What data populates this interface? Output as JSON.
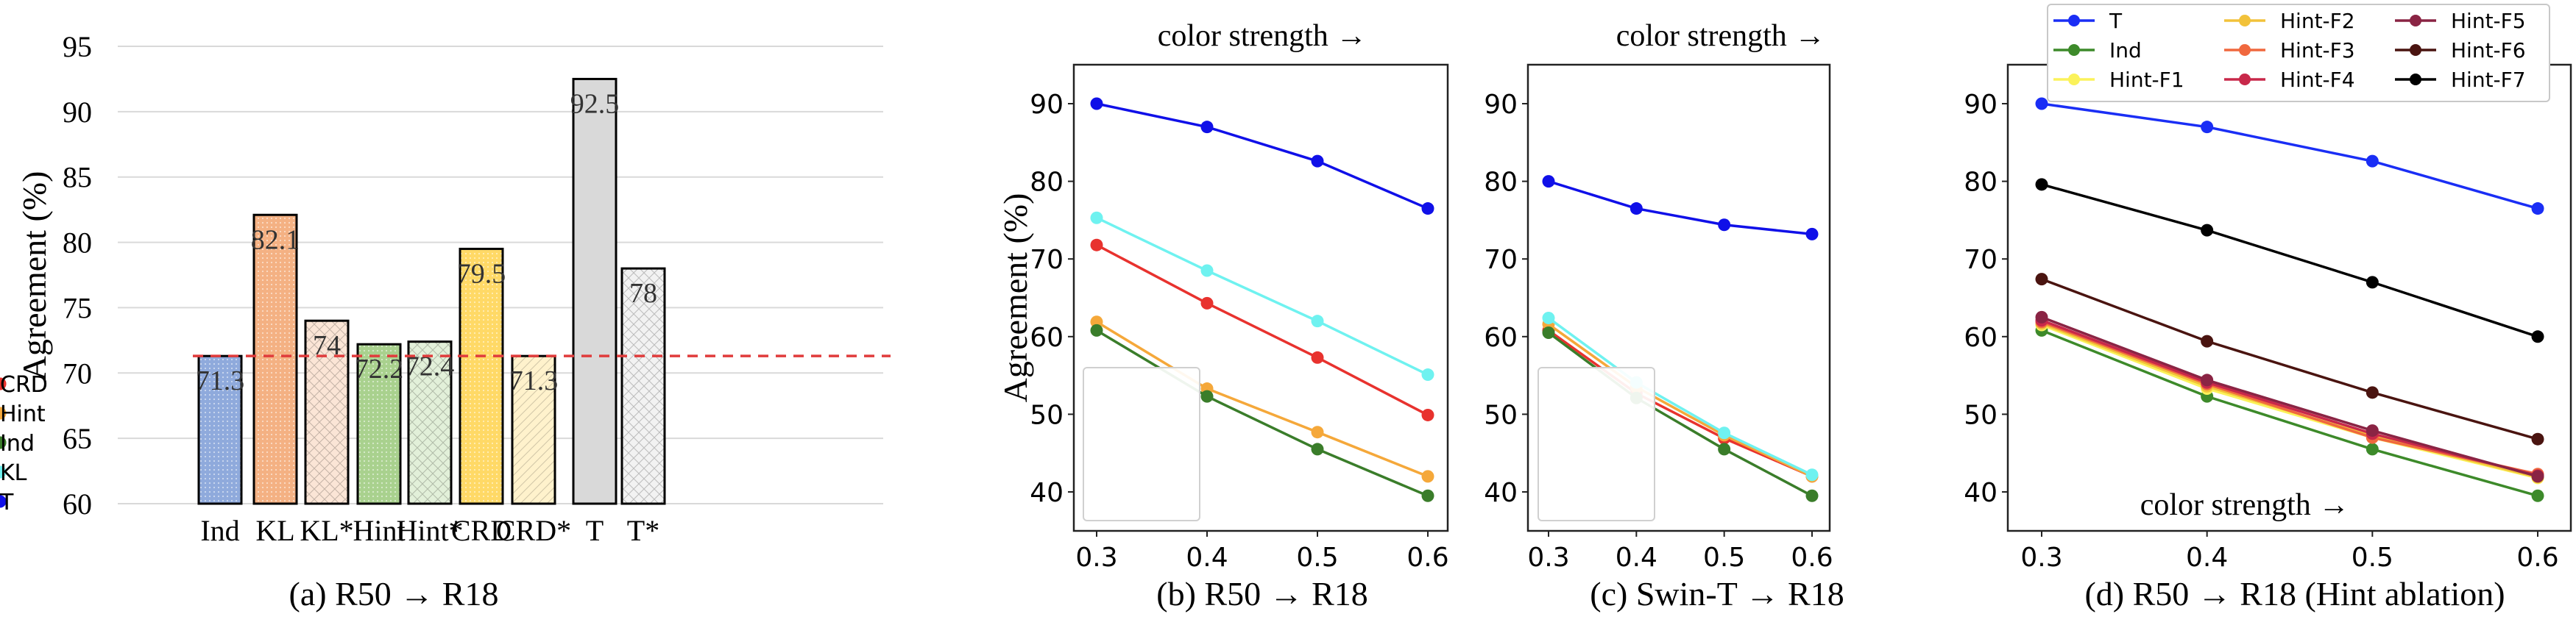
{
  "chart_data": [
    {
      "id": "a",
      "type": "bar",
      "caption": "(a) R50 → R18",
      "ylabel": "Agreement (%)",
      "ylim": [
        60,
        95
      ],
      "yticks": [
        60,
        65,
        70,
        75,
        80,
        85,
        90,
        95
      ],
      "grid": true,
      "categories": [
        "Ind",
        "KL",
        "KL*",
        "Hint",
        "Hint*",
        "CRD",
        "CRD*",
        "T",
        "T*"
      ],
      "values": [
        71.3,
        82.1,
        74,
        72.2,
        72.4,
        79.5,
        71.3,
        92.5,
        78
      ],
      "value_labels": [
        "71.3",
        "82.1",
        "74",
        "72.2",
        "72.4",
        "79.5",
        "71.3",
        "92.5",
        "78"
      ],
      "bar_colors": [
        "#8faadc",
        "#f4b183",
        "#fbe5d6",
        "#a9d18e",
        "#e2f0d9",
        "#ffd966",
        "#fff2cc",
        "#d9d9d9",
        "#f2f2f2"
      ],
      "bar_patterns": [
        "dots",
        "dots",
        "crosshatch",
        "dots",
        "crosshatch",
        "dots",
        "diagonal",
        "solid",
        "crosshatch"
      ],
      "reference_line": {
        "value": 71.3,
        "style": "dashed",
        "color": "#e03c3c"
      }
    },
    {
      "id": "b",
      "type": "line",
      "caption": "(b) R50 → R18",
      "top_label": "color strength →",
      "ylabel": "Agreement (%)",
      "x": [
        0.3,
        0.4,
        0.5,
        0.6
      ],
      "xticks": [
        "0.3",
        "0.4",
        "0.5",
        "0.6"
      ],
      "yticks": [
        40,
        50,
        60,
        70,
        80,
        90
      ],
      "ylim": [
        35,
        95
      ],
      "legend": "lower-left",
      "series": [
        {
          "name": "CRD",
          "color": "#e8322e",
          "values": [
            71.8,
            64.3,
            57.3,
            49.9
          ]
        },
        {
          "name": "Hint",
          "color": "#f5a83a",
          "values": [
            61.9,
            53.3,
            47.7,
            42.0
          ]
        },
        {
          "name": "Ind",
          "color": "#3a7d2a",
          "values": [
            60.8,
            52.3,
            45.5,
            39.5
          ]
        },
        {
          "name": "KL",
          "color": "#6ff2f0",
          "values": [
            75.3,
            68.5,
            62.0,
            55.1
          ]
        },
        {
          "name": "T",
          "color": "#1010e8",
          "values": [
            90.0,
            87.0,
            82.6,
            76.5
          ]
        }
      ]
    },
    {
      "id": "c",
      "type": "line",
      "caption": "(c) Swin-T → R18",
      "top_label": "color strength →",
      "x": [
        0.3,
        0.4,
        0.5,
        0.6
      ],
      "xticks": [
        "0.3",
        "0.4",
        "0.5",
        "0.6"
      ],
      "yticks": [
        40,
        50,
        60,
        70,
        80,
        90
      ],
      "ylim": [
        35,
        95
      ],
      "legend": "lower-left",
      "series": [
        {
          "name": "CRD",
          "color": "#e8322e",
          "values": [
            60.8,
            52.7,
            46.9,
            42.0
          ]
        },
        {
          "name": "Hint",
          "color": "#f5a83a",
          "values": [
            61.6,
            53.5,
            47.3,
            42.0
          ]
        },
        {
          "name": "Ind",
          "color": "#3a7d2a",
          "values": [
            60.5,
            52.1,
            45.5,
            39.5
          ]
        },
        {
          "name": "KL",
          "color": "#6ff2f0",
          "values": [
            62.4,
            54.1,
            47.6,
            42.2
          ]
        },
        {
          "name": "T",
          "color": "#1010e8",
          "values": [
            80.0,
            76.5,
            74.4,
            73.2
          ]
        }
      ]
    },
    {
      "id": "d",
      "type": "line",
      "caption": "(d) R50 → R18 (Hint ablation)",
      "inner_label": "color strength →",
      "x": [
        0.3,
        0.4,
        0.5,
        0.6
      ],
      "xticks": [
        "0.3",
        "0.4",
        "0.5",
        "0.6"
      ],
      "yticks": [
        40,
        50,
        60,
        70,
        80,
        90
      ],
      "ylim": [
        35,
        95
      ],
      "legend": "top (3 columns)",
      "series": [
        {
          "name": "T",
          "color": "#1a2ef5",
          "values": [
            90.0,
            87.0,
            82.6,
            76.5
          ]
        },
        {
          "name": "Ind",
          "color": "#3d8a2a",
          "values": [
            60.8,
            52.3,
            45.5,
            39.5
          ]
        },
        {
          "name": "Hint-F1",
          "color": "#fbf25a",
          "values": [
            61.5,
            53.3,
            47.0,
            41.8
          ]
        },
        {
          "name": "Hint-F2",
          "color": "#f2c23a",
          "values": [
            61.7,
            53.6,
            47.2,
            41.9
          ]
        },
        {
          "name": "Hint-F3",
          "color": "#f0683e",
          "values": [
            61.9,
            53.9,
            47.0,
            42.3
          ]
        },
        {
          "name": "Hint-F4",
          "color": "#c8284a",
          "values": [
            62.1,
            54.1,
            47.5,
            42.1
          ]
        },
        {
          "name": "Hint-F5",
          "color": "#8a2444",
          "values": [
            62.5,
            54.4,
            47.9,
            42.0
          ]
        },
        {
          "name": "Hint-F6",
          "color": "#4a1410",
          "values": [
            67.4,
            59.4,
            52.8,
            46.8
          ]
        },
        {
          "name": "Hint-F7",
          "color": "#000000",
          "values": [
            79.6,
            73.7,
            67.0,
            60.0
          ]
        }
      ]
    }
  ]
}
